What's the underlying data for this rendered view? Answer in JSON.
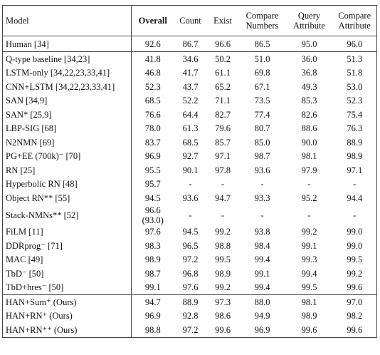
{
  "table": {
    "header": [
      "Model",
      "Overall",
      "Count",
      "Exist",
      "Compare Numbers",
      "Query Attribute",
      "Compare Attribute"
    ],
    "groups": [
      [
        [
          "Human [34]",
          "92.6",
          "86.7",
          "96.6",
          "86.5",
          "95.0",
          "96.0"
        ]
      ],
      [
        [
          "Q-type baseline [34,23]",
          "41.8",
          "34.6",
          "50.2",
          "51.0",
          "36.0",
          "51.3"
        ],
        [
          "LSTM-only [34,22,23,33,41]",
          "46.8",
          "41.7",
          "61.1",
          "69.8",
          "36.8",
          "51.8"
        ],
        [
          "CNN+LSTM [34,22,23,33,41]",
          "52.3",
          "43.7",
          "65.2",
          "67.1",
          "49.3",
          "53.0"
        ],
        [
          "SAN [34,9]",
          "68.5",
          "52.2",
          "71.1",
          "73.5",
          "85.3",
          "52.3"
        ],
        [
          "SAN* [25,9]",
          "76.6",
          "64.4",
          "82.7",
          "77.4",
          "82.6",
          "75.4"
        ],
        [
          "LBP-SIG [68]",
          "78.0",
          "61.3",
          "79.6",
          "80.7",
          "88.6",
          "76.3"
        ],
        [
          "N2NMN [69]",
          "83.7",
          "68.5",
          "85.7",
          "85.0",
          "90.0",
          "88.9"
        ],
        [
          "PG+EE (700k)⁻ [70]",
          "96.9",
          "92.7",
          "97.1",
          "98.7",
          "98.1",
          "98.9"
        ],
        [
          "RN [25]",
          "95.5",
          "90.1",
          "97.8",
          "93.6",
          "97.9",
          "97.1"
        ],
        [
          "Hyperbolic RN [48]",
          "95.7",
          "-",
          "-",
          "-",
          "-",
          "-"
        ],
        [
          "Object RN** [55]",
          "94.5",
          "93.6",
          "94.7",
          "93.3",
          "95.2",
          "94.4"
        ],
        [
          "Stack-NMNs** [52]",
          [
            "96.6",
            "(93.0)"
          ],
          "-",
          "-",
          "-",
          "-",
          "-"
        ],
        [
          "FiLM [11]",
          "97.6",
          "94.5",
          "99.2",
          "93.8",
          "99.2",
          "99.0"
        ],
        [
          "DDRprog⁻ [71]",
          "98.3",
          "96.5",
          "98.8",
          "98.4",
          "99.1",
          "99.0"
        ],
        [
          "MAC [49]",
          "98.9",
          "97.2",
          "99.5",
          "99.4",
          "99.3",
          "99.5"
        ],
        [
          "TbD⁻ [50]",
          "98.7",
          "96.8",
          "98.9",
          "99.1",
          "99.4",
          "99.2"
        ],
        [
          "TbD+hres⁻ [50]",
          "99.1",
          "97.6",
          "99.2",
          "99.4",
          "99.5",
          "99.6"
        ]
      ],
      [
        [
          "HAN+Sum⁺ (Ours)",
          "94.7",
          "88.9",
          "97.3",
          "88.0",
          "98.1",
          "97.0"
        ],
        [
          "HAN+RN⁺ (Ours)",
          "96.9",
          "92.8",
          "98.6",
          "94.9",
          "98.9",
          "98.2"
        ],
        [
          "HAN+RN⁺⁺ (Ours)",
          "98.8",
          "97.2",
          "99.6",
          "96.9",
          "99.6",
          "99.6"
        ]
      ]
    ]
  }
}
